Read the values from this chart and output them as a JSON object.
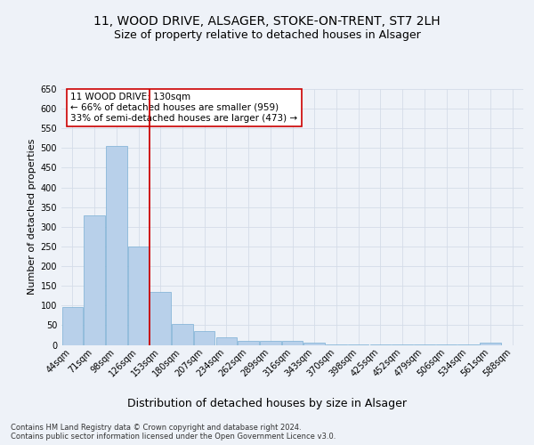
{
  "title1": "11, WOOD DRIVE, ALSAGER, STOKE-ON-TRENT, ST7 2LH",
  "title2": "Size of property relative to detached houses in Alsager",
  "xlabel": "Distribution of detached houses by size in Alsager",
  "ylabel": "Number of detached properties",
  "categories": [
    "44sqm",
    "71sqm",
    "98sqm",
    "126sqm",
    "153sqm",
    "180sqm",
    "207sqm",
    "234sqm",
    "262sqm",
    "289sqm",
    "316sqm",
    "343sqm",
    "370sqm",
    "398sqm",
    "425sqm",
    "452sqm",
    "479sqm",
    "506sqm",
    "534sqm",
    "561sqm",
    "588sqm"
  ],
  "values": [
    95,
    330,
    505,
    250,
    135,
    53,
    35,
    20,
    10,
    10,
    10,
    5,
    2,
    2,
    1,
    1,
    1,
    1,
    1,
    5,
    0
  ],
  "bar_color": "#b8d0ea",
  "bar_edge_color": "#7aafd4",
  "vline_index": 3,
  "vline_color": "#cc0000",
  "ylim": [
    0,
    650
  ],
  "yticks": [
    0,
    50,
    100,
    150,
    200,
    250,
    300,
    350,
    400,
    450,
    500,
    550,
    600,
    650
  ],
  "annotation_line1": "11 WOOD DRIVE: 130sqm",
  "annotation_line2": "← 66% of detached houses are smaller (959)",
  "annotation_line3": "33% of semi-detached houses are larger (473) →",
  "annotation_box_color": "#ffffff",
  "annotation_box_edge": "#cc0000",
  "grid_color": "#d4dce8",
  "background_color": "#eef2f8",
  "footer_text": "Contains HM Land Registry data © Crown copyright and database right 2024.\nContains public sector information licensed under the Open Government Licence v3.0.",
  "title1_fontsize": 10,
  "title2_fontsize": 9,
  "xlabel_fontsize": 9,
  "ylabel_fontsize": 8,
  "tick_fontsize": 7,
  "annotation_fontsize": 7.5,
  "footer_fontsize": 6
}
